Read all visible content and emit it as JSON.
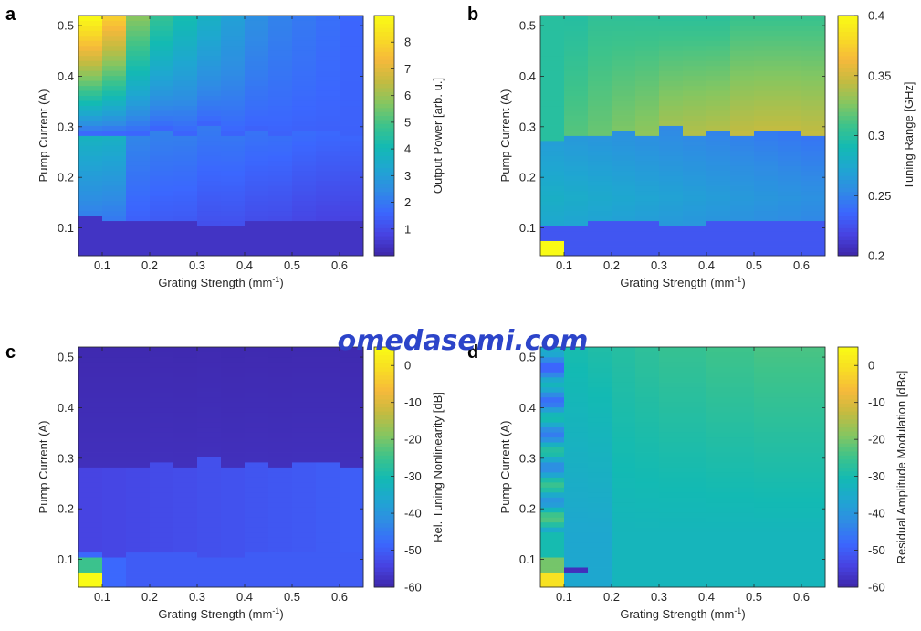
{
  "watermark": "omedasemi.com",
  "colorscale": [
    "#3e26a8",
    "#4743e2",
    "#3b67fe",
    "#2f8ce4",
    "#1fa6d1",
    "#13bab3",
    "#3ec38a",
    "#86c660",
    "#c5bb40",
    "#f6b93b",
    "#f8dd24",
    "#f9fb15"
  ],
  "shared_axes": {
    "xlabel": "Grating Strength (mm",
    "xlabel_exp": "-1",
    "xlabel_close": ")",
    "ylabel": "Pump Current (A)",
    "x_ticks": [
      "0.1",
      "0.2",
      "0.3",
      "0.4",
      "0.5",
      "0.6"
    ],
    "y_ticks": [
      "0.1",
      "0.2",
      "0.3",
      "0.4",
      "0.5"
    ]
  },
  "chart_data": [
    {
      "panel": "a",
      "type": "heatmap",
      "xlabel": "Grating Strength (mm^-1)",
      "ylabel": "Pump Current (A)",
      "colorbar_label": "Output Power [arb. u.]",
      "colorbar_ticks": [
        "1",
        "2",
        "3",
        "4",
        "5",
        "6",
        "7",
        "8"
      ],
      "xlim": [
        0.05,
        0.65
      ],
      "ylim": [
        0.045,
        0.52
      ],
      "clim": [
        0,
        9
      ],
      "grating_strength": [
        0.075,
        0.125,
        0.175,
        0.225,
        0.275,
        0.325,
        0.375,
        0.425,
        0.475,
        0.525,
        0.575,
        0.625
      ],
      "threshold_current": [
        0.285,
        0.285,
        0.285,
        0.295,
        0.285,
        0.305,
        0.285,
        0.295,
        0.285,
        0.295,
        0.295,
        0.285
      ],
      "low_boundary_current": [
        0.125,
        0.115,
        0.115,
        0.115,
        0.115,
        0.105,
        0.105,
        0.115,
        0.115,
        0.115,
        0.115,
        0.115
      ],
      "power_at_0_5A": [
        8.5,
        7.5,
        5.5,
        4.5,
        4.0,
        3.5,
        3.0,
        2.5,
        2.2,
        2.0,
        1.8,
        1.6
      ],
      "power_below_threshold": 2.5
    },
    {
      "panel": "b",
      "type": "heatmap",
      "xlabel": "Grating Strength (mm^-1)",
      "ylabel": "Pump Current (A)",
      "colorbar_label": "Tuning Range [GHz]",
      "colorbar_ticks": [
        "0.2",
        "0.25",
        "0.3",
        "0.35",
        "0.4"
      ],
      "xlim": [
        0.05,
        0.65
      ],
      "ylim": [
        0.045,
        0.52
      ],
      "clim": [
        0.2,
        0.4
      ],
      "grating_strength": [
        0.075,
        0.125,
        0.175,
        0.225,
        0.275,
        0.325,
        0.375,
        0.425,
        0.475,
        0.525,
        0.575,
        0.625
      ],
      "threshold_current": [
        0.275,
        0.285,
        0.285,
        0.295,
        0.285,
        0.305,
        0.285,
        0.295,
        0.285,
        0.295,
        0.295,
        0.285
      ],
      "low_boundary_current": [
        0.105,
        0.105,
        0.115,
        0.115,
        0.115,
        0.105,
        0.105,
        0.115,
        0.115,
        0.115,
        0.115,
        0.115
      ],
      "tuning_range_at_0_3A": [
        0.3,
        0.315,
        0.32,
        0.325,
        0.33,
        0.335,
        0.34,
        0.34,
        0.345,
        0.345,
        0.345,
        0.345
      ],
      "tuning_range_at_0_5A": [
        0.3,
        0.3,
        0.305,
        0.305,
        0.305,
        0.305,
        0.305,
        0.305,
        0.31,
        0.31,
        0.31,
        0.31
      ],
      "tuning_range_below_threshold": 0.28,
      "max_cell": {
        "grating_strength": 0.075,
        "pump_current": 0.065,
        "value": 0.4
      }
    },
    {
      "panel": "c",
      "type": "heatmap",
      "xlabel": "Grating Strength (mm^-1)",
      "ylabel": "Pump Current (A)",
      "colorbar_label": "Rel. Tuning Nonlinearity [dB]",
      "colorbar_ticks": [
        "0",
        "-10",
        "-20",
        "-30",
        "-40",
        "-50",
        "-60"
      ],
      "xlim": [
        0.05,
        0.65
      ],
      "ylim": [
        0.045,
        0.52
      ],
      "clim": [
        -60,
        5
      ],
      "grating_strength": [
        0.075,
        0.125,
        0.175,
        0.225,
        0.275,
        0.325,
        0.375,
        0.425,
        0.475,
        0.525,
        0.575,
        0.625
      ],
      "threshold_current": [
        0.285,
        0.285,
        0.285,
        0.295,
        0.285,
        0.305,
        0.285,
        0.295,
        0.285,
        0.295,
        0.295,
        0.285
      ],
      "low_boundary_current": [
        0.115,
        0.105,
        0.115,
        0.115,
        0.115,
        0.105,
        0.105,
        0.115,
        0.115,
        0.115,
        0.115,
        0.115
      ],
      "nonlinearity_above_threshold": -58,
      "nonlinearity_below_threshold": -54,
      "max_cell": {
        "grating_strength": 0.075,
        "pump_current": 0.065,
        "value": 5
      }
    },
    {
      "panel": "d",
      "type": "heatmap",
      "xlabel": "Grating Strength (mm^-1)",
      "ylabel": "Pump Current (A)",
      "colorbar_label": "Residual Amplitude Modulation [dBc]",
      "colorbar_ticks": [
        "0",
        "-10",
        "-20",
        "-30",
        "-40",
        "-50",
        "-60"
      ],
      "xlim": [
        0.05,
        0.65
      ],
      "ylim": [
        0.045,
        0.52
      ],
      "clim": [
        -60,
        5
      ],
      "grating_strength": [
        0.075,
        0.125,
        0.175,
        0.225,
        0.275,
        0.325,
        0.375,
        0.425,
        0.475,
        0.525,
        0.575,
        0.625
      ],
      "ram_at_0_5A": [
        -42,
        -30,
        -29,
        -28,
        -27,
        -26,
        -26,
        -25,
        -25,
        -24,
        -24,
        -24
      ],
      "ram_at_0_1A": [
        -30,
        -36,
        -36,
        -32,
        -32,
        -32,
        -32,
        -32,
        -32,
        -32,
        -32,
        -32
      ],
      "max_cell": {
        "grating_strength": 0.075,
        "pump_current": 0.065,
        "value": 0
      }
    }
  ]
}
